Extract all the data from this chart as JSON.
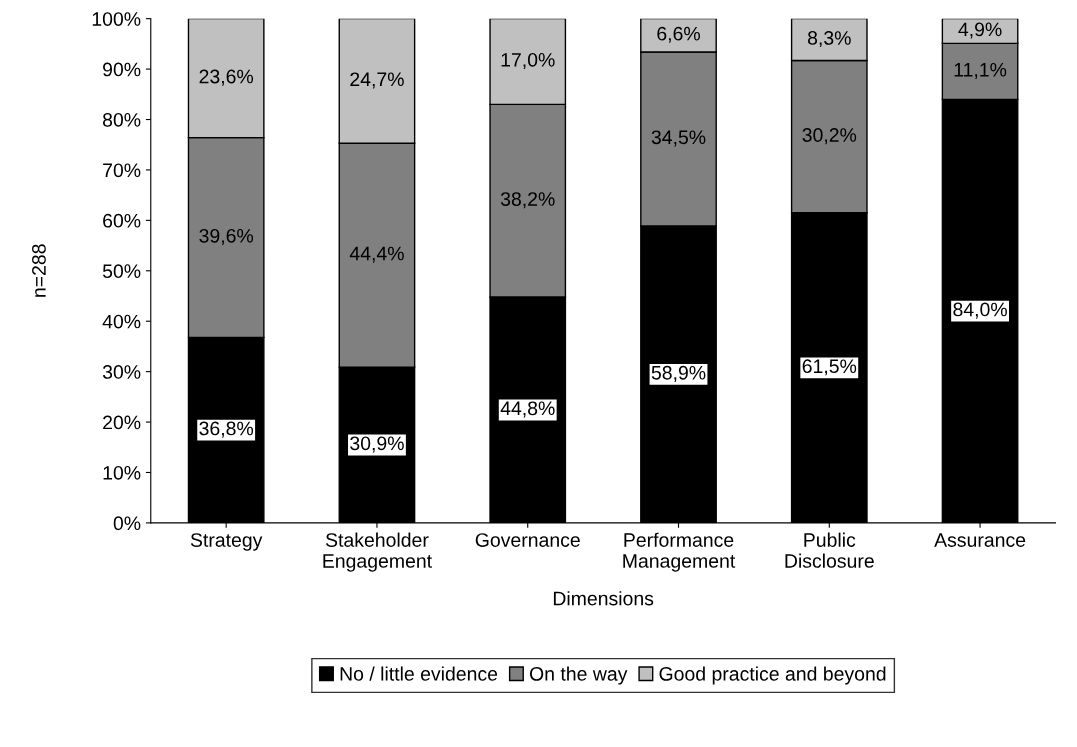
{
  "chart_data": {
    "type": "bar",
    "stacked": true,
    "xlabel": "Dimensions",
    "ylabel": "n=288",
    "categories": [
      "Strategy",
      "Stakeholder\nEngagement",
      "Governance",
      "Performance\nManagement",
      "Public\nDisclosure",
      "Assurance"
    ],
    "series": [
      {
        "name": "No / little evidence",
        "color": "#000000",
        "values": [
          36.8,
          30.9,
          44.8,
          58.9,
          61.5,
          84.0
        ],
        "value_labels": [
          "36,8%",
          "30,9%",
          "44,8%",
          "58,9%",
          "61,5%",
          "84,0%"
        ]
      },
      {
        "name": "On the way",
        "color": "#808080",
        "values": [
          39.6,
          44.4,
          38.2,
          34.5,
          30.2,
          11.1
        ],
        "value_labels": [
          "39,6%",
          "44,4%",
          "38,2%",
          "34,5%",
          "30,2%",
          "11,1%"
        ]
      },
      {
        "name": "Good practice and beyond",
        "color": "#c0c0c0",
        "values": [
          23.6,
          24.7,
          17.0,
          6.6,
          8.3,
          4.9
        ],
        "value_labels": [
          "23,6%",
          "24,7%",
          "17,0%",
          "6,6%",
          "8,3%",
          "4,9%"
        ]
      }
    ],
    "ylim": [
      0,
      100
    ],
    "yticks": [
      {
        "value": 0,
        "label": "0%"
      },
      {
        "value": 10,
        "label": "10%"
      },
      {
        "value": 20,
        "label": "20%"
      },
      {
        "value": 30,
        "label": "30%"
      },
      {
        "value": 40,
        "label": "40%"
      },
      {
        "value": 50,
        "label": "50%"
      },
      {
        "value": 60,
        "label": "60%"
      },
      {
        "value": 70,
        "label": "70%"
      },
      {
        "value": 80,
        "label": "80%"
      },
      {
        "value": 90,
        "label": "90%"
      },
      {
        "value": 100,
        "label": "100%"
      }
    ],
    "grid": false,
    "legend": "bottom"
  }
}
